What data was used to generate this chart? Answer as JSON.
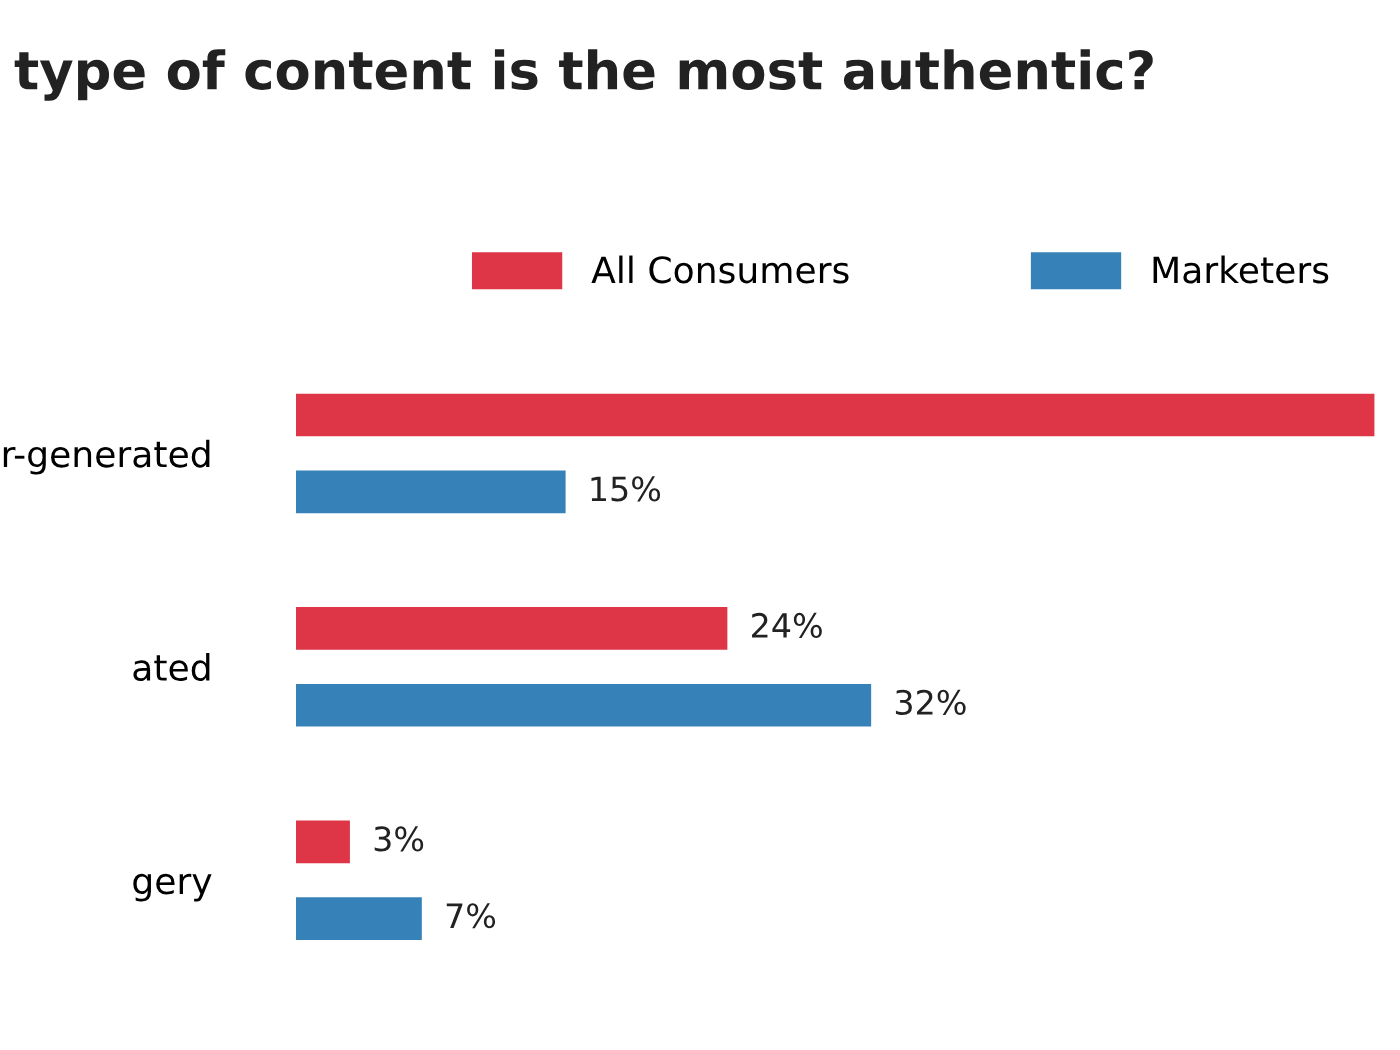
{
  "chart_data": {
    "type": "bar",
    "orientation": "horizontal",
    "title": "type of content is the most authentic?",
    "categories": [
      "r-generated",
      "ated",
      "gery"
    ],
    "series": [
      {
        "name": "All Consumers",
        "color": "#de3646",
        "values": [
          60,
          24,
          3
        ],
        "value_labels": [
          null,
          "24%",
          "3%"
        ]
      },
      {
        "name": "Marketers",
        "color": "#3682b8",
        "values": [
          15,
          32,
          7
        ],
        "value_labels": [
          "15%",
          "32%",
          "7%"
        ]
      }
    ],
    "legend": "top",
    "grid": false
  }
}
